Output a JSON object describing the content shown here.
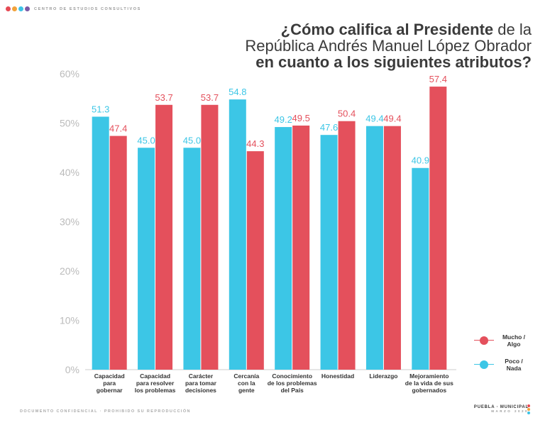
{
  "brand": {
    "name": "CENTRO DE ESTUDIOS CONSULTIVOS",
    "dot_colors": [
      "#e64a54",
      "#f2a33a",
      "#3cc3e6",
      "#7b5aa6"
    ]
  },
  "title": {
    "line1_bold": "¿Cómo califica al Presidente",
    "line1_light": " de la",
    "line2_light": "República Andrés Manuel López Obrador",
    "line3_bold": "en cuanto a los siguientes atributos?"
  },
  "legend": {
    "mucho": "Mucho / Algo",
    "poco": "Poco / Nada"
  },
  "footer": {
    "confidential": "DOCUMENTO CONFIDENCIAL · PROHIBIDO SU REPRODUCCIÓN",
    "region": "PUEBLA · MUNICIPAL",
    "date": "MARZO 2020"
  },
  "colors": {
    "poco": "#3cc6e6",
    "mucho": "#e4505c",
    "axis_text": "#bbbbbb",
    "grid": "#dddddd"
  },
  "chart_data": {
    "type": "bar",
    "categories": [
      [
        "Capacidad",
        "para",
        "gobernar"
      ],
      [
        "Capacidad",
        "para resolver",
        "los problemas"
      ],
      [
        "Carácter",
        "para tomar",
        "decisiones"
      ],
      [
        "Cercanía",
        "con la",
        "gente"
      ],
      [
        "Conocimiento",
        "de los problemas",
        "del País"
      ],
      [
        "Honestidad"
      ],
      [
        "Liderazgo"
      ],
      [
        "Mejoramiento",
        "de la vida de sus",
        "gobernados"
      ]
    ],
    "series": [
      {
        "name": "Poco / Nada",
        "values": [
          51.3,
          45.0,
          45.0,
          54.8,
          49.2,
          47.6,
          49.4,
          40.9
        ]
      },
      {
        "name": "Mucho / Algo",
        "values": [
          47.4,
          53.7,
          53.7,
          44.3,
          49.5,
          50.4,
          49.4,
          57.4
        ]
      }
    ],
    "value_labels": [
      [
        "51.3",
        "45.0",
        "45.0",
        "54.8",
        "49.2",
        "47.6",
        "49.4",
        "40.9"
      ],
      [
        "47.4",
        "53.7",
        "53.7",
        "44.3",
        "49.5",
        "50.4",
        "49.4",
        "57.4"
      ]
    ],
    "yticks": [
      "0%",
      "10%",
      "20%",
      "30%",
      "40%",
      "50%",
      "60%"
    ],
    "ylim": [
      0,
      60
    ],
    "grid": false,
    "legend_position": "bottom-right"
  }
}
